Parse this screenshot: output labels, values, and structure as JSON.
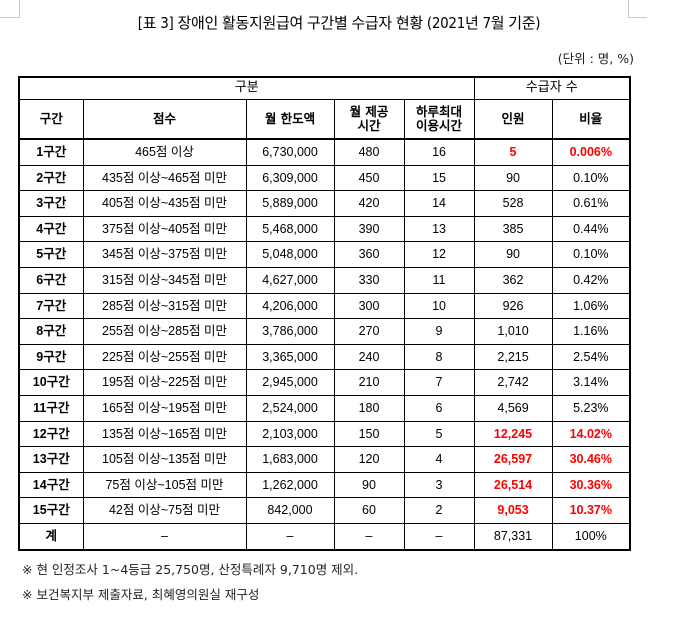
{
  "document": {
    "title": "[표 3] 장애인 활동지원급여 구간별 수급자 현황 (2021년 7월 기준)",
    "unit": "(단위 : 명, %)"
  },
  "table": {
    "group_headers": {
      "category": "구분",
      "recipients": "수급자 수"
    },
    "columns": {
      "band": "구간",
      "score": "점수",
      "monthly_limit": "월 한도액",
      "monthly_hours_line1": "월 제공",
      "monthly_hours_line2": "시간",
      "daily_max_line1": "하루최대",
      "daily_max_line2": "이용시간",
      "count": "인원",
      "ratio": "비율"
    },
    "highlight_color": "#ff0000",
    "rows": [
      {
        "band": "1구간",
        "score": "465점 이상",
        "monthly_limit": "6,730,000",
        "monthly_hours": "480",
        "daily_max": "16",
        "count": "5",
        "ratio": "0.006%",
        "highlight": true
      },
      {
        "band": "2구간",
        "score": "435점 이상~465점 미만",
        "monthly_limit": "6,309,000",
        "monthly_hours": "450",
        "daily_max": "15",
        "count": "90",
        "ratio": "0.10%",
        "highlight": false
      },
      {
        "band": "3구간",
        "score": "405점 이상~435점 미만",
        "monthly_limit": "5,889,000",
        "monthly_hours": "420",
        "daily_max": "14",
        "count": "528",
        "ratio": "0.61%",
        "highlight": false
      },
      {
        "band": "4구간",
        "score": "375점 이상~405점 미만",
        "monthly_limit": "5,468,000",
        "monthly_hours": "390",
        "daily_max": "13",
        "count": "385",
        "ratio": "0.44%",
        "highlight": false
      },
      {
        "band": "5구간",
        "score": "345점 이상~375점 미만",
        "monthly_limit": "5,048,000",
        "monthly_hours": "360",
        "daily_max": "12",
        "count": "90",
        "ratio": "0.10%",
        "highlight": false
      },
      {
        "band": "6구간",
        "score": "315점 이상~345점 미만",
        "monthly_limit": "4,627,000",
        "monthly_hours": "330",
        "daily_max": "11",
        "count": "362",
        "ratio": "0.42%",
        "highlight": false
      },
      {
        "band": "7구간",
        "score": "285점 이상~315점 미만",
        "monthly_limit": "4,206,000",
        "monthly_hours": "300",
        "daily_max": "10",
        "count": "926",
        "ratio": "1.06%",
        "highlight": false
      },
      {
        "band": "8구간",
        "score": "255점 이상~285점 미만",
        "monthly_limit": "3,786,000",
        "monthly_hours": "270",
        "daily_max": "9",
        "count": "1,010",
        "ratio": "1.16%",
        "highlight": false
      },
      {
        "band": "9구간",
        "score": "225점 이상~255점 미만",
        "monthly_limit": "3,365,000",
        "monthly_hours": "240",
        "daily_max": "8",
        "count": "2,215",
        "ratio": "2.54%",
        "highlight": false
      },
      {
        "band": "10구간",
        "score": "195점 이상~225점 미만",
        "monthly_limit": "2,945,000",
        "monthly_hours": "210",
        "daily_max": "7",
        "count": "2,742",
        "ratio": "3.14%",
        "highlight": false
      },
      {
        "band": "11구간",
        "score": "165점 이상~195점 미만",
        "monthly_limit": "2,524,000",
        "monthly_hours": "180",
        "daily_max": "6",
        "count": "4,569",
        "ratio": "5.23%",
        "highlight": false
      },
      {
        "band": "12구간",
        "score": "135점 이상~165점 미만",
        "monthly_limit": "2,103,000",
        "monthly_hours": "150",
        "daily_max": "5",
        "count": "12,245",
        "ratio": "14.02%",
        "highlight": true
      },
      {
        "band": "13구간",
        "score": "105점 이상~135점 미만",
        "monthly_limit": "1,683,000",
        "monthly_hours": "120",
        "daily_max": "4",
        "count": "26,597",
        "ratio": "30.46%",
        "highlight": true
      },
      {
        "band": "14구간",
        "score": "75점 이상~105점 미만",
        "monthly_limit": "1,262,000",
        "monthly_hours": "90",
        "daily_max": "3",
        "count": "26,514",
        "ratio": "30.36%",
        "highlight": true
      },
      {
        "band": "15구간",
        "score": "42점 이상~75점 미만",
        "monthly_limit": "842,000",
        "monthly_hours": "60",
        "daily_max": "2",
        "count": "9,053",
        "ratio": "10.37%",
        "highlight": true
      }
    ],
    "total": {
      "band": "계",
      "score": "–",
      "monthly_limit": "–",
      "monthly_hours": "–",
      "daily_max": "–",
      "count": "87,331",
      "ratio": "100%"
    }
  },
  "notes": [
    "※ 현 인정조사 1~4등급 25,750명, 산정특례자 9,710명 제외.",
    "※ 보건복지부 제출자료, 최혜영의원실 재구성"
  ]
}
